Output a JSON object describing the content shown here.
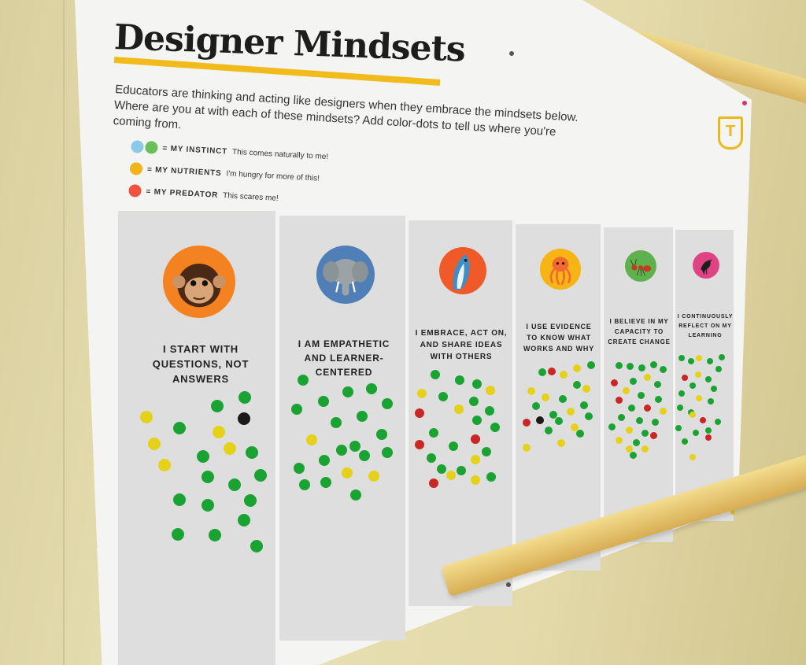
{
  "poster": {
    "title": "Designer Mindsets",
    "intro_line1": "Educators are thinking and acting like designers when they embrace the mindsets below.",
    "intro_line2": "Where are you at with each of these mindsets? Add color-dots to tell us where you're coming from.",
    "logo_letter": "T"
  },
  "legend": [
    {
      "key": "= MY INSTINCT",
      "note": "This comes naturally to me!",
      "colors": [
        "#8cc8e8",
        "#6bbf5a"
      ]
    },
    {
      "key": "= MY NUTRIENTS",
      "note": "I'm hungry for more of this!",
      "colors": [
        "#f2b31b"
      ]
    },
    {
      "key": "= MY PREDATOR",
      "note": "This scares me!",
      "colors": [
        "#ef5340"
      ]
    }
  ],
  "mindsets": [
    {
      "animal": "chimpanzee-icon",
      "circle_color": "#f58220",
      "caption": [
        "I START WITH",
        "QUESTIONS, NOT",
        "ANSWERS"
      ]
    },
    {
      "animal": "elephant-icon",
      "circle_color": "#4f7fb6",
      "caption": [
        "I AM EMPATHETIC",
        "AND LEARNER-",
        "CENTERED"
      ]
    },
    {
      "animal": "dolphin-icon",
      "circle_color": "#f05a28",
      "caption": [
        "I EMBRACE, ACT ON,",
        "AND SHARE IDEAS",
        "WITH OTHERS"
      ]
    },
    {
      "animal": "octopus-icon",
      "circle_color": "#f7b515",
      "caption": [
        "I USE EVIDENCE",
        "TO KNOW WHAT",
        "WORKS AND WHY"
      ]
    },
    {
      "animal": "ant-icon",
      "circle_color": "#5fb14d",
      "caption": [
        "I BELIEVE IN MY",
        "CAPACITY TO",
        "CREATE CHANGE"
      ]
    },
    {
      "animal": "bird-icon",
      "circle_color": "#e04384",
      "caption": [
        "I CONTINUOUSLY",
        "REFLECT ON MY",
        "LEARNING"
      ]
    }
  ],
  "colors": {
    "green_dot": "#1aa332",
    "yellow_dot": "#e6d11a",
    "red_dot": "#c92626",
    "black_dot": "#1a1a1a"
  }
}
